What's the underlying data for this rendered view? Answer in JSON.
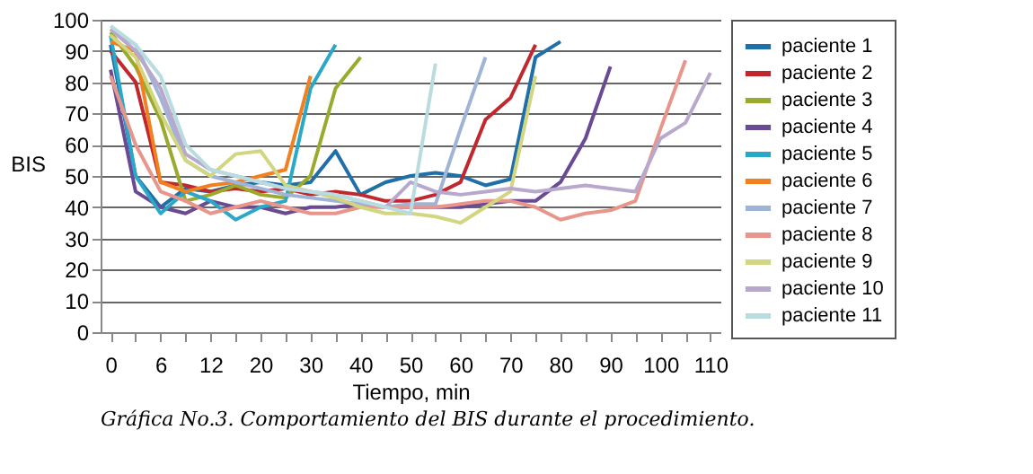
{
  "chart_data": {
    "type": "line",
    "xlabel": "Tiempo, min",
    "ylabel": "BIS",
    "categories": [
      "0",
      null,
      "6",
      null,
      "12",
      null,
      "20",
      null,
      "30",
      null,
      "40",
      null,
      "50",
      null,
      "60",
      null,
      "70",
      null,
      "80",
      null,
      "90",
      null,
      "100",
      null,
      "110"
    ],
    "ylim": [
      0,
      100
    ],
    "yticks": [
      0,
      10,
      20,
      30,
      40,
      50,
      60,
      70,
      80,
      90,
      100
    ],
    "grid": "y",
    "legend": "right",
    "marker": "none",
    "line_style": "solid",
    "annotations": [
      "Gráfica No.3. Comportamiento del BIS durante el procedimiento."
    ],
    "series": [
      {
        "name": "paciente 1",
        "color": "#1f6fa8",
        "values": [
          92,
          50,
          40,
          46,
          45,
          47,
          48,
          47,
          48,
          58,
          44,
          48,
          50,
          51,
          50,
          47,
          49,
          88,
          93,
          null,
          null,
          null,
          null,
          null,
          null
        ]
      },
      {
        "name": "paciente 2",
        "color": "#c0282e",
        "values": [
          90,
          80,
          48,
          47,
          45,
          46,
          45,
          46,
          44,
          45,
          44,
          42,
          42,
          44,
          48,
          68,
          75,
          92,
          null,
          null,
          null,
          null,
          null,
          null,
          null
        ]
      },
      {
        "name": "paciente 3",
        "color": "#9aaa2e",
        "values": [
          96,
          85,
          68,
          42,
          44,
          47,
          44,
          43,
          50,
          78,
          88,
          null,
          null,
          null,
          null,
          null,
          null,
          null,
          null,
          null,
          null,
          null,
          null,
          null,
          null
        ]
      },
      {
        "name": "paciente 4",
        "color": "#6a4a93",
        "values": [
          84,
          45,
          40,
          38,
          42,
          40,
          40,
          38,
          40,
          40,
          41,
          40,
          40,
          40,
          40,
          41,
          42,
          42,
          48,
          62,
          85,
          null,
          null,
          null,
          null
        ]
      },
      {
        "name": "paciente 5",
        "color": "#2aa8c8",
        "values": [
          95,
          50,
          38,
          45,
          42,
          36,
          40,
          42,
          78,
          92,
          null,
          null,
          null,
          null,
          null,
          null,
          null,
          null,
          null,
          null,
          null,
          null,
          null,
          null,
          null
        ]
      },
      {
        "name": "paciente 6",
        "color": "#f08020",
        "values": [
          93,
          90,
          48,
          45,
          47,
          48,
          50,
          52,
          82,
          null,
          null,
          null,
          null,
          null,
          null,
          null,
          null,
          null,
          null,
          null,
          null,
          null,
          null,
          null,
          null
        ]
      },
      {
        "name": "paciente 7",
        "color": "#a0b4d8",
        "values": [
          97,
          92,
          75,
          55,
          50,
          48,
          46,
          44,
          43,
          42,
          41,
          40,
          41,
          41,
          65,
          88,
          null,
          null,
          null,
          null,
          null,
          null,
          null,
          null,
          null
        ]
      },
      {
        "name": "paciente 8",
        "color": "#e8968c",
        "values": [
          82,
          60,
          45,
          42,
          38,
          40,
          42,
          40,
          38,
          38,
          40,
          40,
          40,
          40,
          41,
          42,
          42,
          40,
          36,
          38,
          39,
          42,
          65,
          87,
          null
        ]
      },
      {
        "name": "paciente 9",
        "color": "#d2d680",
        "values": [
          95,
          88,
          70,
          55,
          50,
          57,
          58,
          47,
          45,
          43,
          40,
          38,
          38,
          37,
          35,
          40,
          45,
          82,
          null,
          null,
          null,
          null,
          null,
          null,
          null
        ]
      },
      {
        "name": "paciente 10",
        "color": "#b8a8cc",
        "values": [
          97,
          90,
          78,
          57,
          52,
          50,
          48,
          46,
          45,
          44,
          42,
          40,
          48,
          45,
          44,
          45,
          46,
          45,
          46,
          47,
          46,
          45,
          62,
          67,
          83
        ]
      },
      {
        "name": "paciente 11",
        "color": "#b8dce0",
        "values": [
          98,
          92,
          82,
          60,
          52,
          50,
          48,
          46,
          45,
          44,
          42,
          40,
          38,
          86,
          null,
          null,
          null,
          null,
          null,
          null,
          null,
          null,
          null,
          null,
          null
        ]
      }
    ]
  }
}
